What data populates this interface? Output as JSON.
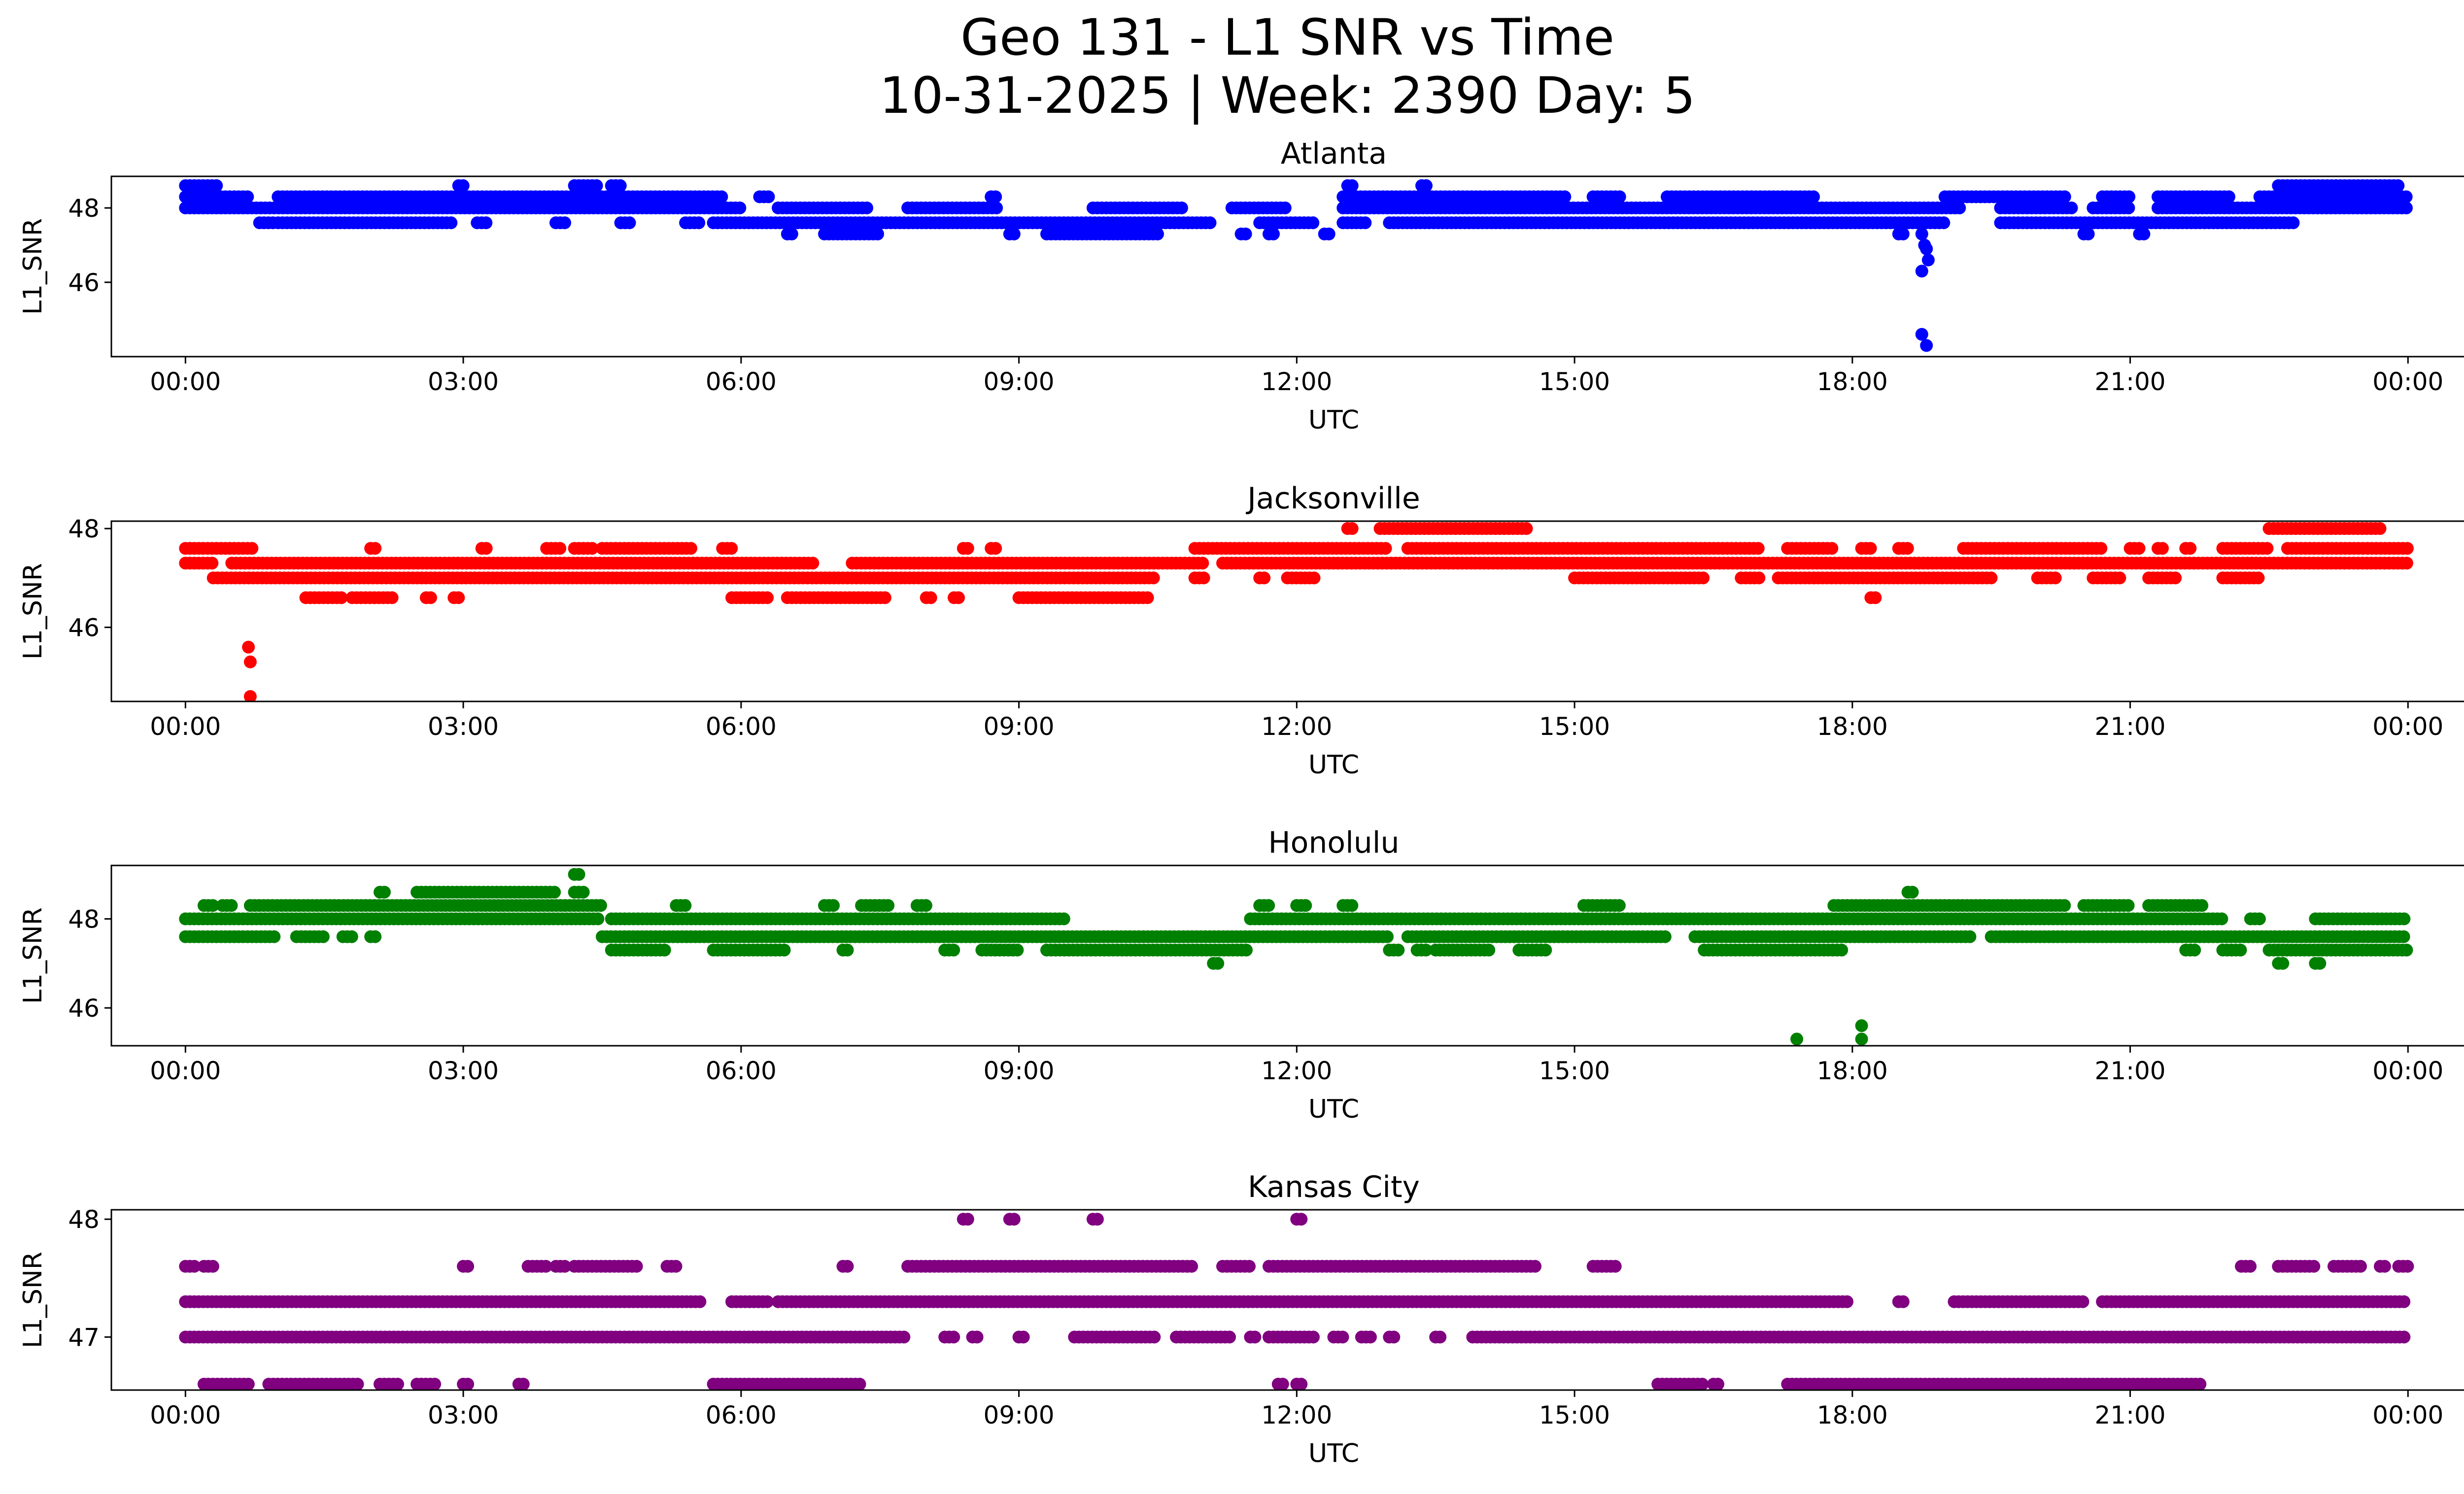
{
  "figure": {
    "title_line1": "Geo 131 - L1 SNR vs Time",
    "title_line2": "10-31-2025 | Week: 2390 Day: 5"
  },
  "chart_data": [
    {
      "type": "scatter",
      "title": "Atlanta",
      "xlabel": "UTC",
      "ylabel": "L1_SNR",
      "color": "#0000ff",
      "xlim_hours": [
        -0.8,
        25.6
      ],
      "ylim": [
        44.0,
        48.85
      ],
      "xticks": [
        "00:00",
        "03:00",
        "06:00",
        "09:00",
        "12:00",
        "15:00",
        "18:00",
        "21:00",
        "00:00"
      ],
      "yticks": [
        46,
        48
      ],
      "bands": [
        {
          "y": 48.6,
          "segments": [
            [
              0.0,
              0.35
            ],
            [
              2.95,
              3.0
            ],
            [
              4.2,
              4.45
            ],
            [
              4.6,
              4.7
            ],
            [
              12.55,
              12.6
            ],
            [
              13.35,
              13.4
            ],
            [
              22.6,
              23.9
            ]
          ]
        },
        {
          "y": 48.3,
          "segments": [
            [
              0.0,
              0.7
            ],
            [
              1.0,
              5.8
            ],
            [
              6.2,
              6.3
            ],
            [
              8.7,
              8.75
            ],
            [
              12.5,
              14.9
            ],
            [
              15.2,
              15.5
            ],
            [
              16.0,
              17.6
            ],
            [
              19.0,
              20.3
            ],
            [
              20.7,
              21.0
            ],
            [
              21.3,
              22.1
            ],
            [
              22.4,
              24.0
            ]
          ]
        },
        {
          "y": 48.0,
          "segments": [
            [
              0.0,
              6.0
            ],
            [
              6.4,
              7.4
            ],
            [
              7.8,
              8.8
            ],
            [
              9.8,
              10.8
            ],
            [
              11.3,
              11.9
            ],
            [
              12.5,
              19.2
            ],
            [
              19.6,
              20.4
            ],
            [
              20.6,
              21.0
            ],
            [
              21.3,
              24.0
            ]
          ]
        },
        {
          "y": 47.6,
          "segments": [
            [
              0.8,
              0.95
            ],
            [
              1.0,
              2.9
            ],
            [
              3.15,
              3.25
            ],
            [
              4.0,
              4.1
            ],
            [
              4.7,
              4.8
            ],
            [
              5.4,
              5.55
            ],
            [
              5.7,
              11.1
            ],
            [
              11.6,
              12.2
            ],
            [
              12.5,
              12.75
            ],
            [
              13.0,
              19.0
            ],
            [
              19.6,
              22.8
            ]
          ]
        },
        {
          "y": 47.3,
          "segments": [
            [
              6.5,
              6.55
            ],
            [
              6.9,
              7.5
            ],
            [
              8.9,
              8.95
            ],
            [
              9.3,
              10.5
            ],
            [
              11.4,
              11.45
            ],
            [
              11.7,
              11.75
            ],
            [
              12.3,
              12.35
            ],
            [
              18.5,
              18.55
            ],
            [
              20.5,
              20.55
            ],
            [
              21.1,
              21.15
            ]
          ]
        }
      ],
      "points": [
        [
          18.75,
          47.3
        ],
        [
          18.78,
          47.0
        ],
        [
          18.8,
          46.9
        ],
        [
          18.75,
          46.3
        ],
        [
          18.82,
          46.6
        ],
        [
          18.75,
          44.6
        ],
        [
          18.8,
          44.3
        ]
      ]
    },
    {
      "type": "scatter",
      "title": "Jacksonville",
      "xlabel": "UTC",
      "ylabel": "L1_SNR",
      "color": "#ff0000",
      "xlim_hours": [
        -0.8,
        25.6
      ],
      "ylim": [
        44.5,
        48.15
      ],
      "xticks": [
        "00:00",
        "03:00",
        "06:00",
        "09:00",
        "12:00",
        "15:00",
        "18:00",
        "21:00",
        "00:00"
      ],
      "yticks": [
        46,
        48
      ],
      "bands": [
        {
          "y": 48.0,
          "segments": [
            [
              12.55,
              12.6
            ],
            [
              12.9,
              14.5
            ],
            [
              22.5,
              23.7
            ]
          ]
        },
        {
          "y": 47.6,
          "segments": [
            [
              0.0,
              0.75
            ],
            [
              2.0,
              2.05
            ],
            [
              3.2,
              3.25
            ],
            [
              3.9,
              4.05
            ],
            [
              4.2,
              4.4
            ],
            [
              4.5,
              5.5
            ],
            [
              5.8,
              5.9
            ],
            [
              8.4,
              8.45
            ],
            [
              8.7,
              8.75
            ],
            [
              10.9,
              13.0
            ],
            [
              13.2,
              17.0
            ],
            [
              17.3,
              17.8
            ],
            [
              18.1,
              18.2
            ],
            [
              18.5,
              18.6
            ],
            [
              19.2,
              20.7
            ],
            [
              21.0,
              21.1
            ],
            [
              21.3,
              21.35
            ],
            [
              21.6,
              21.65
            ],
            [
              22.0,
              22.5
            ],
            [
              22.7,
              24.0
            ]
          ]
        },
        {
          "y": 47.3,
          "segments": [
            [
              0.0,
              0.3
            ],
            [
              0.5,
              6.8
            ],
            [
              7.2,
              11.0
            ],
            [
              11.2,
              24.0
            ]
          ]
        },
        {
          "y": 47.0,
          "segments": [
            [
              0.3,
              10.5
            ],
            [
              10.9,
              11.0
            ],
            [
              11.6,
              11.65
            ],
            [
              11.9,
              12.2
            ],
            [
              15.0,
              16.4
            ],
            [
              16.8,
              17.0
            ],
            [
              17.2,
              19.5
            ],
            [
              20.0,
              20.2
            ],
            [
              20.6,
              20.9
            ],
            [
              21.2,
              21.5
            ],
            [
              22.0,
              22.4
            ]
          ]
        },
        {
          "y": 46.6,
          "segments": [
            [
              1.3,
              1.7
            ],
            [
              1.8,
              2.25
            ],
            [
              2.6,
              2.65
            ],
            [
              2.9,
              2.95
            ],
            [
              5.9,
              6.3
            ],
            [
              6.5,
              7.6
            ],
            [
              8.0,
              8.05
            ],
            [
              8.3,
              8.35
            ],
            [
              9.0,
              10.4
            ],
            [
              18.2,
              18.25
            ]
          ]
        }
      ],
      "points": [
        [
          0.68,
          45.6
        ],
        [
          0.7,
          45.3
        ],
        [
          0.7,
          44.6
        ]
      ]
    },
    {
      "type": "scatter",
      "title": "Honolulu",
      "xlabel": "UTC",
      "ylabel": "L1_SNR",
      "color": "#008000",
      "xlim_hours": [
        -0.8,
        25.6
      ],
      "ylim": [
        45.15,
        49.2
      ],
      "xticks": [
        "00:00",
        "03:00",
        "06:00",
        "09:00",
        "12:00",
        "15:00",
        "18:00",
        "21:00",
        "00:00"
      ],
      "yticks": [
        46,
        48
      ],
      "bands": [
        {
          "y": 49.0,
          "segments": [
            [
              4.2,
              4.25
            ]
          ]
        },
        {
          "y": 48.6,
          "segments": [
            [
              2.1,
              2.15
            ],
            [
              2.5,
              4.0
            ],
            [
              4.2,
              4.3
            ],
            [
              18.6,
              18.65
            ]
          ]
        },
        {
          "y": 48.3,
          "segments": [
            [
              0.2,
              0.3
            ],
            [
              0.4,
              0.5
            ],
            [
              0.7,
              4.5
            ],
            [
              5.3,
              5.4
            ],
            [
              6.9,
              7.0
            ],
            [
              7.3,
              7.6
            ],
            [
              7.9,
              8.0
            ],
            [
              11.6,
              11.7
            ],
            [
              12.0,
              12.1
            ],
            [
              12.5,
              12.6
            ],
            [
              15.1,
              15.5
            ],
            [
              17.8,
              20.3
            ],
            [
              20.5,
              21.0
            ],
            [
              21.2,
              21.8
            ]
          ]
        },
        {
          "y": 48.0,
          "segments": [
            [
              0.0,
              4.5
            ],
            [
              4.6,
              9.5
            ],
            [
              11.5,
              22.0
            ],
            [
              22.3,
              22.4
            ],
            [
              23.0,
              24.0
            ]
          ]
        },
        {
          "y": 47.6,
          "segments": [
            [
              0.0,
              1.0
            ],
            [
              1.2,
              1.5
            ],
            [
              1.7,
              1.8
            ],
            [
              2.0,
              2.05
            ],
            [
              4.5,
              13.0
            ],
            [
              13.2,
              16.0
            ],
            [
              16.3,
              19.3
            ],
            [
              19.5,
              24.0
            ]
          ]
        },
        {
          "y": 47.3,
          "segments": [
            [
              4.6,
              5.2
            ],
            [
              5.7,
              6.5
            ],
            [
              7.1,
              7.15
            ],
            [
              8.2,
              8.3
            ],
            [
              8.6,
              9.0
            ],
            [
              9.3,
              11.5
            ],
            [
              13.0,
              13.1
            ],
            [
              13.3,
              13.4
            ],
            [
              13.5,
              14.1
            ],
            [
              14.4,
              14.7
            ],
            [
              16.4,
              17.9
            ],
            [
              21.6,
              21.7
            ],
            [
              22.0,
              22.2
            ],
            [
              22.5,
              24.0
            ]
          ]
        },
        {
          "y": 47.0,
          "segments": [
            [
              11.1,
              11.15
            ],
            [
              22.6,
              22.65
            ],
            [
              23.0,
              23.05
            ]
          ]
        }
      ],
      "points": [
        [
          17.4,
          45.3
        ],
        [
          18.1,
          45.6
        ],
        [
          18.1,
          45.3
        ]
      ]
    },
    {
      "type": "scatter",
      "title": "Kansas City",
      "xlabel": "UTC",
      "ylabel": "L1_SNR",
      "color": "#800080",
      "xlim_hours": [
        -0.8,
        25.6
      ],
      "ylim": [
        46.55,
        48.08
      ],
      "xticks": [
        "00:00",
        "03:00",
        "06:00",
        "09:00",
        "12:00",
        "15:00",
        "18:00",
        "21:00",
        "00:00"
      ],
      "yticks": [
        47,
        48
      ],
      "bands": [
        {
          "y": 48.0,
          "segments": [
            [
              8.4,
              8.45
            ],
            [
              8.9,
              8.95
            ],
            [
              9.8,
              9.85
            ],
            [
              12.0,
              12.05
            ]
          ]
        },
        {
          "y": 47.6,
          "segments": [
            [
              0.0,
              0.1
            ],
            [
              0.2,
              0.3
            ],
            [
              3.0,
              3.05
            ],
            [
              3.7,
              3.9
            ],
            [
              4.0,
              4.1
            ],
            [
              4.2,
              4.9
            ],
            [
              5.2,
              5.3
            ],
            [
              7.1,
              7.15
            ],
            [
              7.8,
              10.9
            ],
            [
              11.2,
              11.5
            ],
            [
              11.7,
              14.6
            ],
            [
              15.2,
              15.45
            ],
            [
              22.2,
              22.3
            ],
            [
              22.6,
              23.0
            ],
            [
              23.2,
              23.5
            ],
            [
              23.7,
              23.75
            ],
            [
              23.9,
              24.0
            ]
          ]
        },
        {
          "y": 47.3,
          "segments": [
            [
              0.0,
              5.6
            ],
            [
              5.9,
              6.3
            ],
            [
              6.4,
              17.95
            ],
            [
              18.5,
              18.55
            ],
            [
              19.1,
              20.5
            ],
            [
              20.7,
              24.0
            ]
          ]
        },
        {
          "y": 47.0,
          "segments": [
            [
              0.0,
              7.8
            ],
            [
              8.2,
              8.3
            ],
            [
              8.5,
              8.55
            ],
            [
              9.0,
              9.05
            ],
            [
              9.6,
              10.5
            ],
            [
              10.7,
              11.3
            ],
            [
              11.5,
              11.55
            ],
            [
              11.7,
              12.2
            ],
            [
              12.4,
              12.5
            ],
            [
              12.7,
              12.8
            ],
            [
              13.0,
              13.05
            ],
            [
              13.5,
              13.55
            ],
            [
              13.9,
              24.0
            ]
          ]
        },
        {
          "y": 46.6,
          "segments": [
            [
              0.2,
              0.7
            ],
            [
              0.9,
              1.9
            ],
            [
              2.1,
              2.3
            ],
            [
              2.5,
              2.7
            ],
            [
              3.0,
              3.05
            ],
            [
              3.6,
              3.65
            ],
            [
              5.7,
              7.3
            ],
            [
              11.8,
              11.85
            ],
            [
              12.0,
              12.05
            ],
            [
              15.9,
              16.4
            ],
            [
              16.5,
              16.55
            ],
            [
              17.3,
              21.8
            ]
          ]
        }
      ],
      "points": []
    }
  ]
}
